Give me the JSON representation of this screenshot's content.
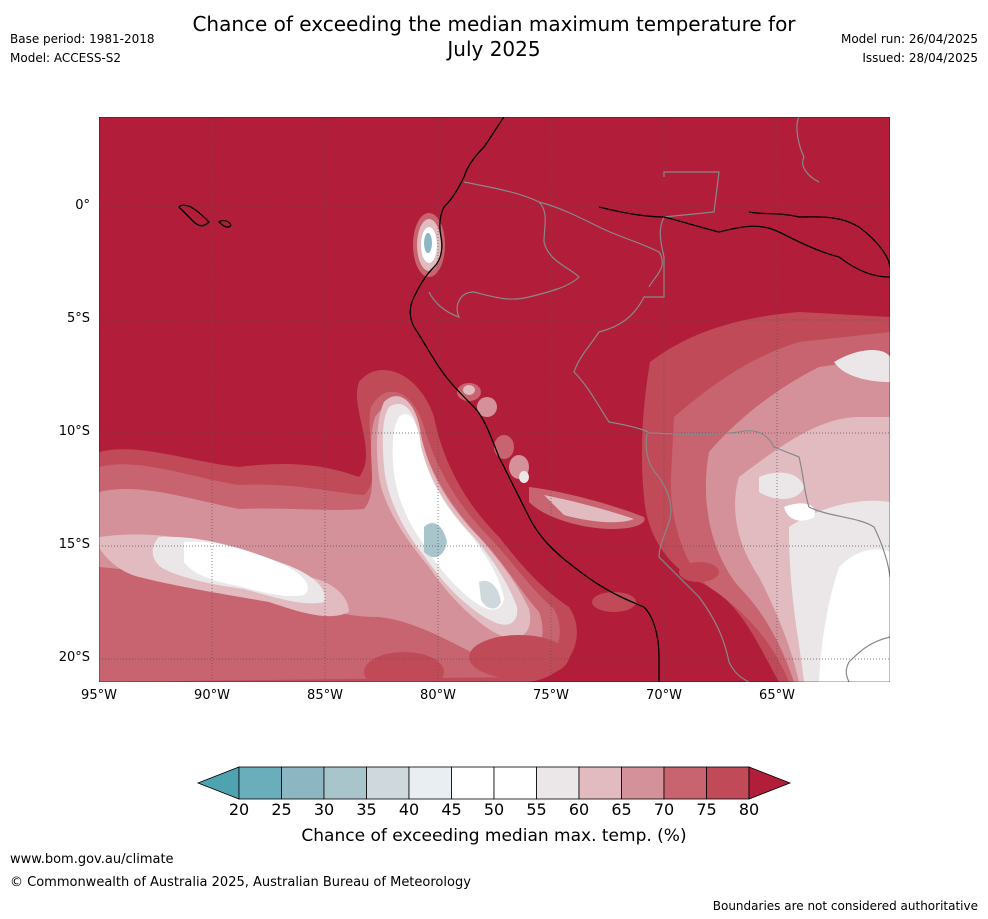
{
  "title_line1": "Chance of exceeding the median maximum temperature for",
  "title_line2": "July 2025",
  "meta_left": [
    "Base period: 1981-2018",
    "Model: ACCESS-S2"
  ],
  "meta_right": [
    "Model run: 26/04/2025",
    "Issued: 28/04/2025"
  ],
  "map": {
    "region": "Western South America and eastern Pacific",
    "lon_range": [
      -95,
      -60
    ],
    "lat_range": [
      -21,
      4
    ],
    "lat_labels": [
      "0°",
      "5°S",
      "10°S",
      "15°S",
      "20°S"
    ],
    "lat_values": [
      0,
      -5,
      -10,
      -15,
      -20
    ],
    "lon_labels": [
      "95°W",
      "90°W",
      "85°W",
      "80°W",
      "75°W",
      "70°W",
      "65°W"
    ],
    "lon_values": [
      -95,
      -90,
      -85,
      -80,
      -75,
      -70,
      -65
    ],
    "background_class": "80+",
    "colors": {
      "above80": "#b21e3a",
      "c75_80": "#c04a58",
      "c70_75": "#c8646f",
      "c65_70": "#d4919a",
      "c60_65": "#e1bbbf",
      "c55_60": "#ebe7e8",
      "c45_55": "#ffffff",
      "c40_45": "#e8eef1",
      "c35_40": "#cfd8dc",
      "c30_35": "#a9c5cc",
      "c25_30": "#8cb7c2",
      "below20": "#5ea6b3"
    }
  },
  "colorbar": {
    "ticks": [
      "20",
      "25",
      "30",
      "35",
      "40",
      "45",
      "50",
      "55",
      "60",
      "65",
      "70",
      "75",
      "80"
    ],
    "colors": [
      "#6aaebb",
      "#8cb7c2",
      "#a9c5cc",
      "#cfd8dc",
      "#e8eef1",
      "#ffffff",
      "#ffffff",
      "#ebe7e8",
      "#e1bbbf",
      "#d4919a",
      "#c8646f",
      "#c04a58"
    ],
    "under_color": "#4fa3b1",
    "over_color": "#b21e3a",
    "label": "Chance of exceeding median max. temp. (%)"
  },
  "footer": {
    "url": "www.bom.gov.au/climate",
    "copyright": "© Commonwealth of Australia 2025, Australian Bureau of Meteorology",
    "note": "Boundaries are not considered authoritative"
  }
}
